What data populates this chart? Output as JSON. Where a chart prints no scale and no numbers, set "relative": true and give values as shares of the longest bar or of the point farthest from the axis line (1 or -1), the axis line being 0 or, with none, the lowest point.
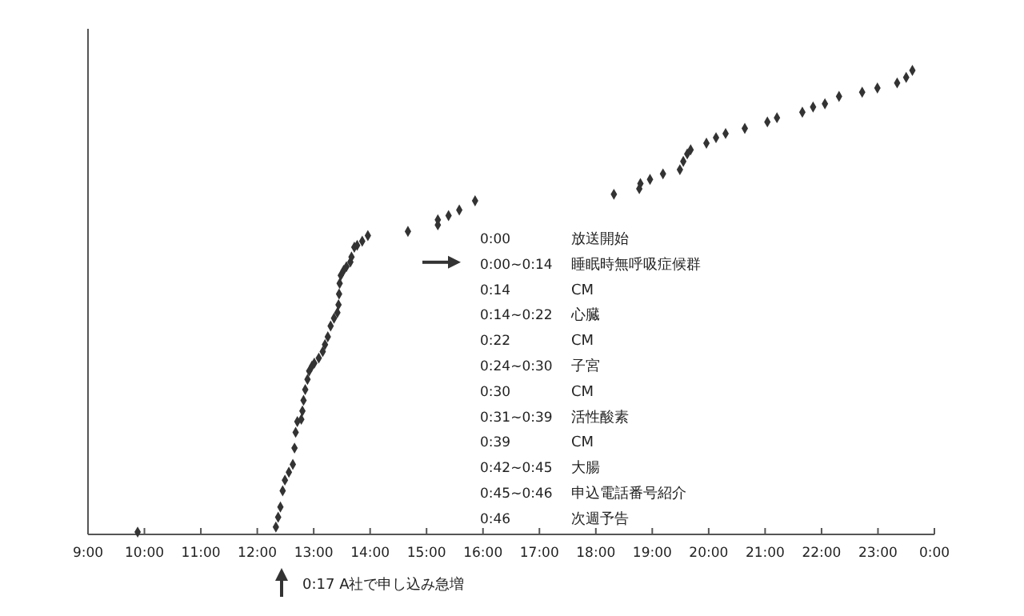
{
  "chart_data": {
    "type": "scatter",
    "relative": true,
    "marker": "diamond",
    "grid": false,
    "xlim": [
      9,
      24
    ],
    "xticks": [
      {
        "value": 9,
        "label": "9:00"
      },
      {
        "value": 10,
        "label": "10:00"
      },
      {
        "value": 11,
        "label": "11:00"
      },
      {
        "value": 12,
        "label": "12:00"
      },
      {
        "value": 13,
        "label": "13:00"
      },
      {
        "value": 14,
        "label": "14:00"
      },
      {
        "value": 15,
        "label": "15:00"
      },
      {
        "value": 16,
        "label": "16:00"
      },
      {
        "value": 17,
        "label": "17:00"
      },
      {
        "value": 18,
        "label": "18:00"
      },
      {
        "value": 19,
        "label": "19:00"
      },
      {
        "value": 20,
        "label": "20:00"
      },
      {
        "value": 21,
        "label": "21:00"
      },
      {
        "value": 22,
        "label": "22:00"
      },
      {
        "value": 23,
        "label": "23:00"
      },
      {
        "value": 24,
        "label": "0:00"
      }
    ],
    "series": [
      {
        "color": "#333333",
        "x": [
          9.88,
          12.33,
          12.37,
          12.41,
          12.45,
          12.49,
          12.56,
          12.63,
          12.66,
          12.68,
          12.71,
          12.78,
          12.8,
          12.82,
          12.85,
          12.89,
          12.92,
          12.97,
          13.01,
          13.09,
          13.16,
          13.2,
          13.25,
          13.3,
          13.36,
          13.42,
          13.44,
          13.45,
          13.46,
          13.48,
          13.53,
          13.58,
          13.65,
          13.67,
          13.72,
          13.77,
          13.86,
          13.96,
          14.67,
          15.2,
          15.2,
          15.39,
          15.58,
          15.86,
          18.32,
          18.77,
          18.79,
          18.96,
          19.19,
          19.49,
          19.55,
          19.62,
          19.68,
          19.96,
          20.13,
          20.3,
          20.64,
          21.04,
          21.21,
          21.66,
          21.85,
          22.06,
          22.31,
          22.72,
          22.99,
          23.34,
          23.5,
          23.61
        ],
        "values": [
          0.005,
          0.016,
          0.037,
          0.059,
          0.094,
          0.117,
          0.134,
          0.151,
          0.186,
          0.22,
          0.243,
          0.248,
          0.266,
          0.289,
          0.312,
          0.334,
          0.352,
          0.363,
          0.369,
          0.38,
          0.394,
          0.409,
          0.426,
          0.449,
          0.466,
          0.478,
          0.495,
          0.518,
          0.541,
          0.558,
          0.569,
          0.577,
          0.587,
          0.598,
          0.619,
          0.623,
          0.632,
          0.644,
          0.653,
          0.667,
          0.678,
          0.687,
          0.699,
          0.719,
          0.733,
          0.745,
          0.756,
          0.765,
          0.777,
          0.786,
          0.804,
          0.82,
          0.829,
          0.843,
          0.855,
          0.864,
          0.875,
          0.889,
          0.898,
          0.91,
          0.921,
          0.928,
          0.944,
          0.953,
          0.962,
          0.973,
          0.985,
          1
        ]
      }
    ],
    "annotations": [
      "0:00 放送開始",
      "0:00~0:14 睡眠時無呼吸症候群",
      "0:14 CM",
      "0:14~0:22 心臓",
      "0:22 CM",
      "0:24~0:30 子宮",
      "0:30 CM",
      "0:31~0:39 活性酸素",
      "0:39 CM",
      "0:42~0:45 大腸",
      "0:45~0:46 申込電話番号紹介",
      "0:46 次週予告",
      "0:17 A社で申し込み急増"
    ]
  }
}
